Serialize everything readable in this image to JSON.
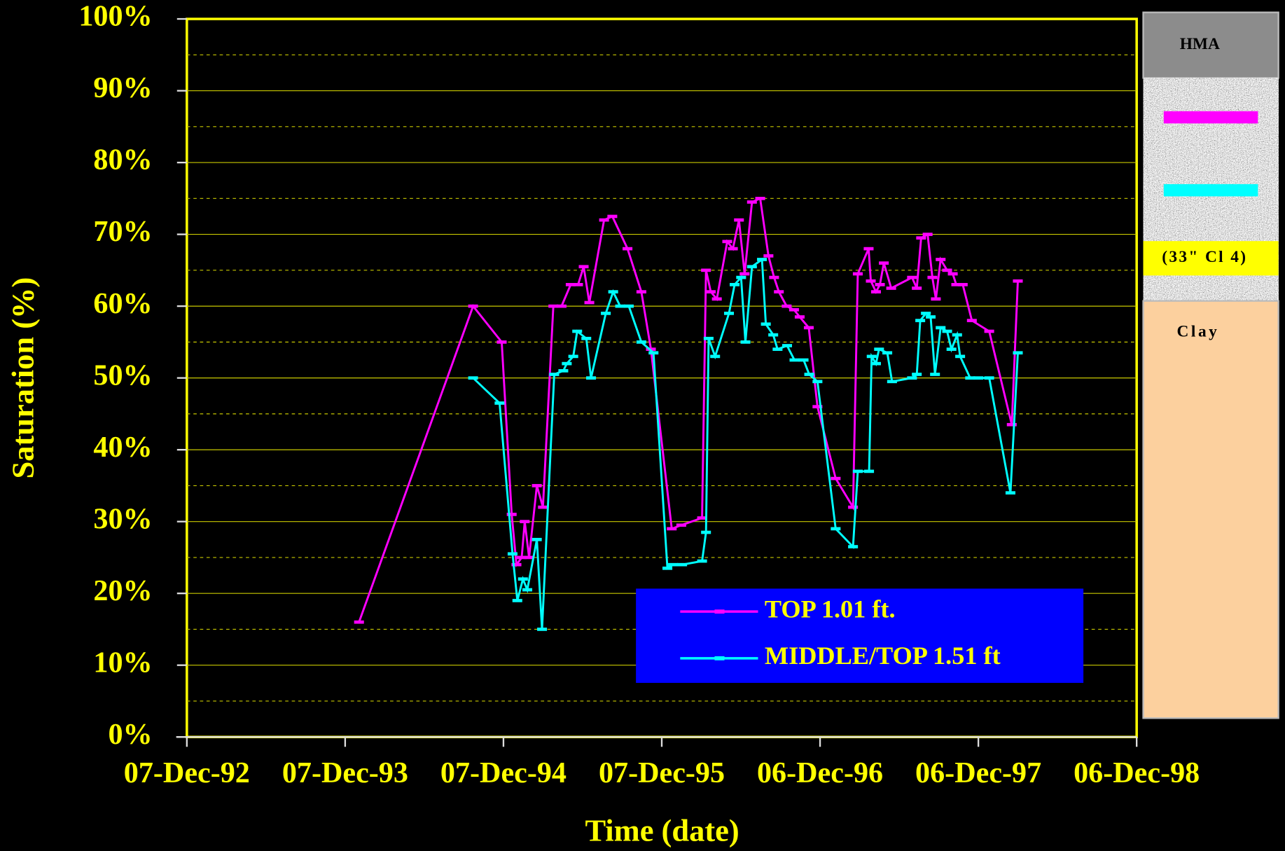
{
  "chart_data": {
    "type": "line",
    "xlabel": "Time (date)",
    "ylabel": "Saturation (%)",
    "xlim": [
      "1992-12-07",
      "1998-12-06"
    ],
    "xticks": [
      {
        "value": "1992-12-07",
        "label": "07-Dec-92"
      },
      {
        "value": "1993-12-07",
        "label": "07-Dec-93"
      },
      {
        "value": "1994-12-07",
        "label": "07-Dec-94"
      },
      {
        "value": "1995-12-07",
        "label": "07-Dec-95"
      },
      {
        "value": "1996-12-06",
        "label": "06-Dec-96"
      },
      {
        "value": "1997-12-06",
        "label": "06-Dec-97"
      },
      {
        "value": "1998-12-06",
        "label": "06-Dec-98"
      }
    ],
    "ylim": [
      0,
      100
    ],
    "yticks": [
      {
        "value": 0,
        "label": "0%"
      },
      {
        "value": 10,
        "label": "10%"
      },
      {
        "value": 20,
        "label": "20%"
      },
      {
        "value": 30,
        "label": "30%"
      },
      {
        "value": 40,
        "label": "40%"
      },
      {
        "value": 50,
        "label": "50%"
      },
      {
        "value": 60,
        "label": "60%"
      },
      {
        "value": 70,
        "label": "70%"
      },
      {
        "value": 80,
        "label": "80%"
      },
      {
        "value": 90,
        "label": "90%"
      },
      {
        "value": 100,
        "label": "100%"
      }
    ],
    "minor_yticks": [
      5,
      15,
      25,
      35,
      45,
      55,
      65,
      75,
      85,
      95
    ],
    "grid": true,
    "legend": "lower right",
    "series": [
      {
        "name": "TOP 1.01 ft.",
        "color": "#ff00ff",
        "x": [
          "1994-01-08",
          "1994-09-28",
          "1994-12-03",
          "1994-12-26",
          "1995-01-06",
          "1995-01-18",
          "1995-01-25",
          "1995-02-04",
          "1995-02-22",
          "1995-03-08",
          "1995-04-01",
          "1995-04-20",
          "1995-05-11",
          "1995-05-28",
          "1995-06-10",
          "1995-06-23",
          "1995-07-27",
          "1995-08-15",
          "1995-09-19",
          "1995-10-21",
          "1995-11-12",
          "1995-12-30",
          "1996-01-21",
          "1996-03-09",
          "1996-03-18",
          "1996-03-29",
          "1996-04-12",
          "1996-05-06",
          "1996-05-19",
          "1996-06-02",
          "1996-06-15",
          "1996-07-02",
          "1996-07-21",
          "1996-08-09",
          "1996-08-22",
          "1996-09-02",
          "1996-09-20",
          "1996-10-07",
          "1996-10-20",
          "1996-11-10",
          "1996-11-30",
          "1997-01-11",
          "1997-02-20",
          "1997-03-03",
          "1997-03-28",
          "1997-04-02",
          "1997-04-14",
          "1997-04-23",
          "1997-05-02",
          "1997-05-19",
          "1997-07-06",
          "1997-07-17",
          "1997-07-27",
          "1997-08-11",
          "1997-08-22",
          "1997-08-30",
          "1997-09-10",
          "1997-09-25",
          "1997-10-08",
          "1997-10-16",
          "1997-10-31",
          "1997-11-21",
          "1997-12-31",
          "1998-02-21",
          "1998-03-07"
        ],
        "values": [
          16,
          60,
          55,
          31,
          24,
          25,
          30,
          25,
          35,
          32,
          60,
          60,
          63,
          63,
          65.5,
          60.5,
          72,
          72.5,
          68,
          62,
          54,
          29,
          29.5,
          30.5,
          65,
          62,
          61,
          69,
          68,
          72,
          64.5,
          74.5,
          75,
          67,
          64,
          62,
          60,
          59.5,
          58.5,
          57,
          46,
          36,
          32,
          64.5,
          68,
          63.5,
          62,
          63,
          66,
          62.5,
          64,
          62.5,
          69.5,
          70,
          64,
          61,
          66.5,
          65,
          64.5,
          63,
          63,
          58,
          56.5,
          43.5,
          63.5
        ]
      },
      {
        "name": "MIDDLE/TOP 1.51 ft",
        "color": "#00ffff",
        "x": [
          "1994-09-28",
          "1994-11-28",
          "1994-12-28",
          "1995-01-08",
          "1995-01-21",
          "1995-01-31",
          "1995-02-22",
          "1995-03-06",
          "1995-04-03",
          "1995-04-24",
          "1995-05-02",
          "1995-05-17",
          "1995-05-26",
          "1995-06-16",
          "1995-06-27",
          "1995-07-31",
          "1995-08-17",
          "1995-09-02",
          "1995-09-22",
          "1995-10-21",
          "1995-11-18",
          "1995-12-20",
          "1996-01-02",
          "1996-01-23",
          "1996-03-09",
          "1996-03-18",
          "1996-03-24",
          "1996-04-08",
          "1996-05-10",
          "1996-05-23",
          "1996-06-07",
          "1996-06-17",
          "1996-07-02",
          "1996-07-25",
          "1996-08-03",
          "1996-08-20",
          "1996-08-30",
          "1996-09-21",
          "1996-10-08",
          "1996-10-29",
          "1996-11-11",
          "1996-11-30",
          "1997-01-11",
          "1997-02-20",
          "1997-03-03",
          "1997-03-29",
          "1997-04-04",
          "1997-04-14",
          "1997-04-21",
          "1997-05-10",
          "1997-05-21",
          "1997-07-06",
          "1997-07-17",
          "1997-07-25",
          "1997-08-07",
          "1997-08-18",
          "1997-08-28",
          "1997-09-10",
          "1997-09-25",
          "1997-10-05",
          "1997-10-18",
          "1997-10-25",
          "1997-11-17",
          "1997-12-06",
          "1997-12-31",
          "1998-02-18",
          "1998-03-07"
        ],
        "values": [
          50,
          46.5,
          25.5,
          19,
          22,
          20.5,
          27.5,
          15,
          50.5,
          51,
          52,
          53,
          56.5,
          55.5,
          50,
          59,
          62,
          60,
          60,
          55,
          53.5,
          23.5,
          24,
          24,
          24.5,
          28.5,
          55.5,
          53,
          59,
          63,
          64,
          55,
          65.5,
          66.5,
          57.5,
          56,
          54,
          54.5,
          52.5,
          52.5,
          50.5,
          49.5,
          29,
          26.5,
          37,
          37,
          53,
          52,
          54,
          53.5,
          49.5,
          50,
          50.5,
          58,
          59,
          58.5,
          50.5,
          57,
          56.5,
          54,
          56,
          53,
          50,
          50,
          50,
          34,
          53.5
        ]
      }
    ],
    "layers": [
      {
        "name": "HMA"
      },
      {
        "name": "(33\" Cl 4)"
      },
      {
        "name": "Clay"
      }
    ]
  }
}
